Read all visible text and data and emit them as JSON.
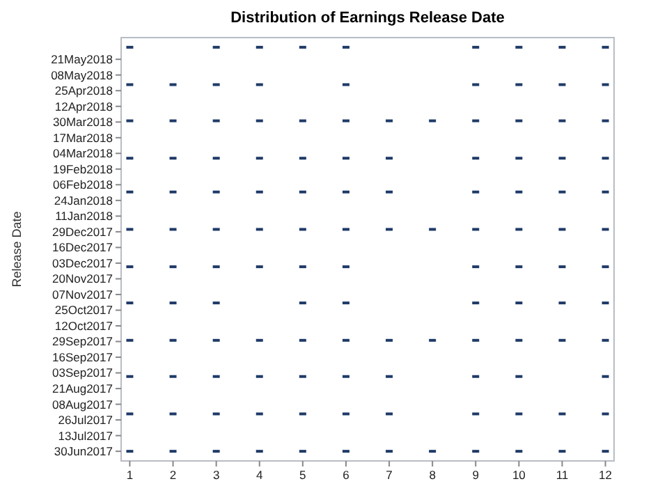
{
  "chart_data": {
    "type": "scatter",
    "orientation": "horizontal",
    "title": "Distribution of Earnings Release Date",
    "ylabel": "Release Date",
    "marker": "square",
    "grid": false,
    "xlim": [
      0.8,
      12.2
    ],
    "xticks": [
      1,
      2,
      3,
      4,
      5,
      6,
      7,
      8,
      9,
      10,
      11,
      12
    ],
    "ylim": [
      "2017-06-22",
      "2018-06-08"
    ],
    "yticks": [
      {
        "value": "2017-06-30",
        "label": "30Jun2017"
      },
      {
        "value": "2017-07-13",
        "label": "13Jul2017"
      },
      {
        "value": "2017-07-26",
        "label": "26Jul2017"
      },
      {
        "value": "2017-08-08",
        "label": "08Aug2017"
      },
      {
        "value": "2017-08-21",
        "label": "21Aug2017"
      },
      {
        "value": "2017-09-03",
        "label": "03Sep2017"
      },
      {
        "value": "2017-09-16",
        "label": "16Sep2017"
      },
      {
        "value": "2017-09-29",
        "label": "29Sep2017"
      },
      {
        "value": "2017-10-12",
        "label": "12Oct2017"
      },
      {
        "value": "2017-10-25",
        "label": "25Oct2017"
      },
      {
        "value": "2017-11-07",
        "label": "07Nov2017"
      },
      {
        "value": "2017-11-20",
        "label": "20Nov2017"
      },
      {
        "value": "2017-12-03",
        "label": "03Dec2017"
      },
      {
        "value": "2017-12-16",
        "label": "16Dec2017"
      },
      {
        "value": "2017-12-29",
        "label": "29Dec2017"
      },
      {
        "value": "2018-01-11",
        "label": "11Jan2018"
      },
      {
        "value": "2018-01-24",
        "label": "24Jan2018"
      },
      {
        "value": "2018-02-06",
        "label": "06Feb2018"
      },
      {
        "value": "2018-02-19",
        "label": "19Feb2018"
      },
      {
        "value": "2018-03-04",
        "label": "04Mar2018"
      },
      {
        "value": "2018-03-17",
        "label": "17Mar2018"
      },
      {
        "value": "2018-03-30",
        "label": "30Mar2018"
      },
      {
        "value": "2018-04-12",
        "label": "12Apr2018"
      },
      {
        "value": "2018-04-25",
        "label": "25Apr2018"
      },
      {
        "value": "2018-05-08",
        "label": "08May2018"
      },
      {
        "value": "2018-05-21",
        "label": "21May2018"
      }
    ],
    "series": [
      {
        "color": "#1f3a68",
        "values": [
          1,
          2,
          3,
          4,
          5,
          6,
          7,
          8,
          9,
          10,
          11,
          12,
          1,
          2,
          3,
          4,
          5,
          6,
          7,
          9,
          10,
          11,
          12,
          1,
          2,
          3,
          4,
          5,
          6,
          7,
          9,
          10,
          12,
          1,
          2,
          3,
          4,
          5,
          6,
          7,
          8,
          9,
          10,
          11,
          12,
          1,
          2,
          3,
          5,
          6,
          9,
          10,
          11,
          12,
          1,
          2,
          3,
          4,
          5,
          6,
          9,
          10,
          11,
          12,
          1,
          2,
          3,
          4,
          5,
          6,
          7,
          8,
          9,
          10,
          11,
          12,
          1,
          2,
          3,
          4,
          5,
          6,
          7,
          9,
          10,
          11,
          12,
          1,
          2,
          3,
          4,
          5,
          6,
          7,
          9,
          10,
          11,
          12,
          1,
          2,
          3,
          4,
          5,
          6,
          7,
          8,
          9,
          10,
          11,
          12,
          1,
          2,
          3,
          4,
          6,
          9,
          10,
          11,
          12,
          1,
          3,
          4,
          5,
          6,
          9,
          10,
          11,
          12
        ],
        "x": [
          "2017-06-30",
          "2017-06-30",
          "2017-06-30",
          "2017-06-30",
          "2017-06-30",
          "2017-06-30",
          "2017-06-30",
          "2017-06-30",
          "2017-06-30",
          "2017-06-30",
          "2017-06-30",
          "2017-06-30",
          "2017-07-31",
          "2017-07-31",
          "2017-07-31",
          "2017-07-31",
          "2017-07-31",
          "2017-07-31",
          "2017-07-31",
          "2017-07-31",
          "2017-07-31",
          "2017-07-31",
          "2017-07-31",
          "2017-08-31",
          "2017-08-31",
          "2017-08-31",
          "2017-08-31",
          "2017-08-31",
          "2017-08-31",
          "2017-08-31",
          "2017-08-31",
          "2017-08-31",
          "2017-08-31",
          "2017-09-30",
          "2017-09-30",
          "2017-09-30",
          "2017-09-30",
          "2017-09-30",
          "2017-09-30",
          "2017-09-30",
          "2017-09-30",
          "2017-09-30",
          "2017-09-30",
          "2017-09-30",
          "2017-09-30",
          "2017-10-31",
          "2017-10-31",
          "2017-10-31",
          "2017-10-31",
          "2017-10-31",
          "2017-10-31",
          "2017-10-31",
          "2017-10-31",
          "2017-10-31",
          "2017-11-30",
          "2017-11-30",
          "2017-11-30",
          "2017-11-30",
          "2017-11-30",
          "2017-11-30",
          "2017-11-30",
          "2017-11-30",
          "2017-11-30",
          "2017-11-30",
          "2017-12-31",
          "2017-12-31",
          "2017-12-31",
          "2017-12-31",
          "2017-12-31",
          "2017-12-31",
          "2017-12-31",
          "2017-12-31",
          "2017-12-31",
          "2017-12-31",
          "2017-12-31",
          "2017-12-31",
          "2018-01-31",
          "2018-01-31",
          "2018-01-31",
          "2018-01-31",
          "2018-01-31",
          "2018-01-31",
          "2018-01-31",
          "2018-01-31",
          "2018-01-31",
          "2018-01-31",
          "2018-01-31",
          "2018-02-28",
          "2018-02-28",
          "2018-02-28",
          "2018-02-28",
          "2018-02-28",
          "2018-02-28",
          "2018-02-28",
          "2018-02-28",
          "2018-02-28",
          "2018-02-28",
          "2018-02-28",
          "2018-03-31",
          "2018-03-31",
          "2018-03-31",
          "2018-03-31",
          "2018-03-31",
          "2018-03-31",
          "2018-03-31",
          "2018-03-31",
          "2018-03-31",
          "2018-03-31",
          "2018-03-31",
          "2018-03-31",
          "2018-04-30",
          "2018-04-30",
          "2018-04-30",
          "2018-04-30",
          "2018-04-30",
          "2018-04-30",
          "2018-04-30",
          "2018-04-30",
          "2018-04-30",
          "2018-05-31",
          "2018-05-31",
          "2018-05-31",
          "2018-05-31",
          "2018-05-31",
          "2018-05-31",
          "2018-05-31",
          "2018-05-31",
          "2018-05-31"
        ]
      }
    ]
  }
}
